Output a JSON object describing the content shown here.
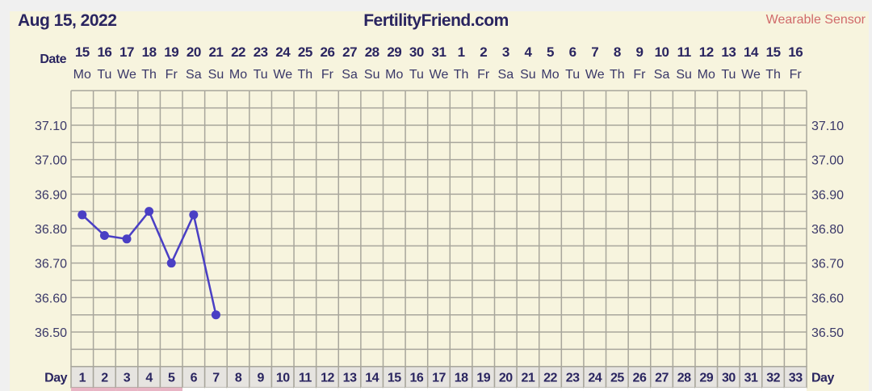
{
  "header": {
    "date": "Aug 15, 2022",
    "site": "FertilityFriend.com",
    "sensor_label": "Wearable Sensor"
  },
  "chart_data": {
    "type": "line",
    "date_row_label": "Date",
    "day_row_label": "Day",
    "dates": [
      "15",
      "16",
      "17",
      "18",
      "19",
      "20",
      "21",
      "22",
      "23",
      "24",
      "25",
      "26",
      "27",
      "28",
      "29",
      "30",
      "31",
      "1",
      "2",
      "3",
      "4",
      "5",
      "6",
      "7",
      "8",
      "9",
      "10",
      "11",
      "12",
      "13",
      "14",
      "15",
      "16"
    ],
    "weekdays": [
      "Mo",
      "Tu",
      "We",
      "Th",
      "Fr",
      "Sa",
      "Su",
      "Mo",
      "Tu",
      "We",
      "Th",
      "Fr",
      "Sa",
      "Su",
      "Mo",
      "Tu",
      "We",
      "Th",
      "Fr",
      "Sa",
      "Su",
      "Mo",
      "Tu",
      "We",
      "Th",
      "Fr",
      "Sa",
      "Su",
      "Mo",
      "Tu",
      "We",
      "Th",
      "Fr"
    ],
    "days": [
      1,
      2,
      3,
      4,
      5,
      6,
      7,
      8,
      9,
      10,
      11,
      12,
      13,
      14,
      15,
      16,
      17,
      18,
      19,
      20,
      21,
      22,
      23,
      24,
      25,
      26,
      27,
      28,
      29,
      30,
      31,
      32,
      33
    ],
    "y_ticks": [
      "37.10",
      "37.00",
      "36.90",
      "36.80",
      "36.70",
      "36.60",
      "36.50"
    ],
    "ylim": [
      36.4,
      37.2
    ],
    "grid": true,
    "series": [
      {
        "x": [
          1,
          2,
          3,
          4,
          5,
          6,
          7
        ],
        "values": [
          36.84,
          36.78,
          36.77,
          36.85,
          36.7,
          36.84,
          36.55
        ]
      }
    ],
    "highlighted_days": [
      1,
      2,
      3,
      4,
      5
    ],
    "colors": {
      "line": "#4a3fc4",
      "text": "#2a2560",
      "grid": "#a8a69c",
      "day_cell": "#e6e4e0",
      "highlight": "#e8b4c4"
    }
  }
}
